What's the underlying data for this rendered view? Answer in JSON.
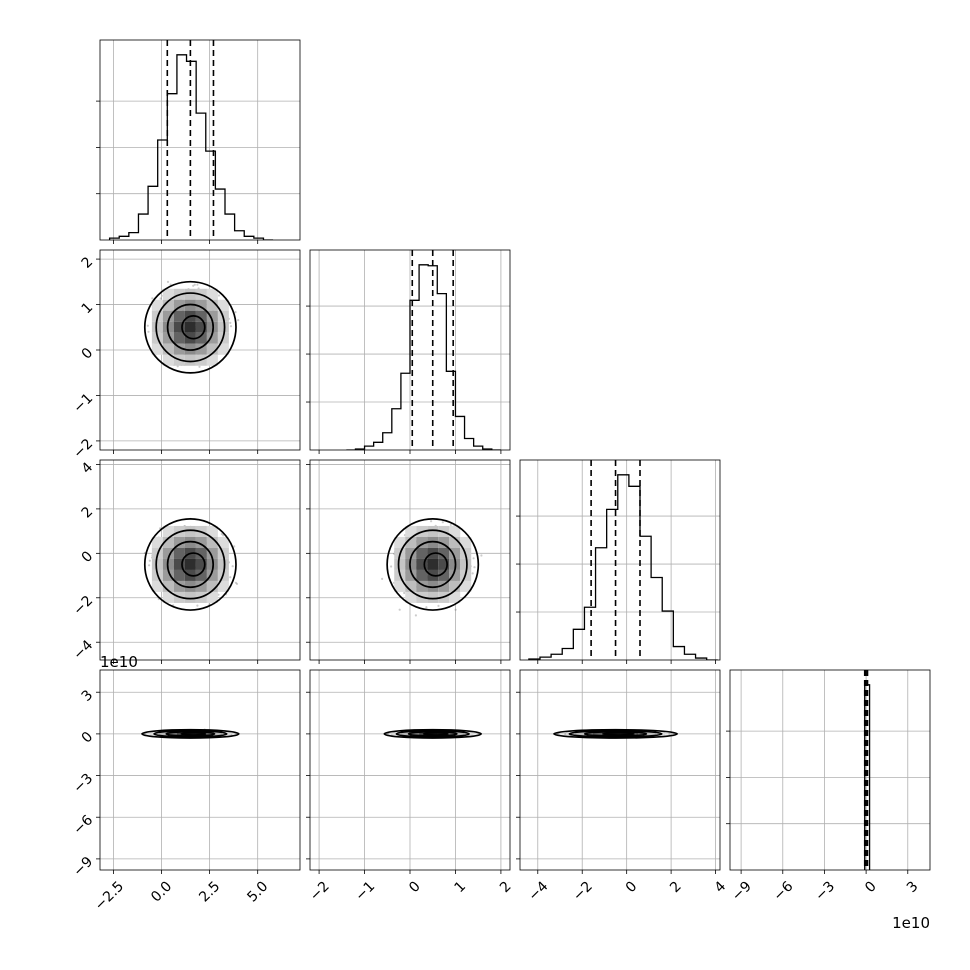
{
  "chart_data": {
    "type": "corner",
    "parameters": 4,
    "ranges": [
      [
        -3.2,
        7.2
      ],
      [
        -2.2,
        2.2
      ],
      [
        -4.8,
        4.2
      ],
      [
        -9.8,
        4.6
      ]
    ],
    "ticks": [
      [
        -2.5,
        0.0,
        2.5,
        5.0
      ],
      [
        -2,
        -1,
        0,
        1,
        2
      ],
      [
        -4,
        -2,
        0,
        2,
        4
      ],
      [
        -9,
        -6,
        -3,
        0,
        3
      ]
    ],
    "tick_labels": [
      [
        "−2.5",
        "0.0",
        "2.5",
        "5.0"
      ],
      [
        "−2",
        "−1",
        "0",
        "1",
        "2"
      ],
      [
        "−4",
        "−2",
        "0",
        "2",
        "4"
      ],
      [
        "−9",
        "−6",
        "−3",
        "0",
        "3"
      ]
    ],
    "offset_labels": {
      "row_axis": "1e10",
      "col_axis": "1e10"
    },
    "grid": true,
    "quantiles": [
      [
        0.3,
        1.5,
        2.7
      ],
      [
        0.05,
        0.5,
        0.95
      ],
      [
        -1.6,
        -0.5,
        0.6
      ],
      [
        -0.1,
        0.0,
        0.1
      ]
    ],
    "histograms": [
      {
        "bin_edges": [
          -2.7,
          -2.2,
          -1.7,
          -1.2,
          -0.7,
          -0.2,
          0.3,
          0.8,
          1.3,
          1.8,
          2.3,
          2.8,
          3.3,
          3.8,
          4.3,
          4.8,
          5.3,
          5.8
        ],
        "counts": [
          2,
          4,
          8,
          28,
          58,
          108,
          158,
          200,
          193,
          137,
          96,
          55,
          28,
          10,
          4,
          2,
          0
        ]
      },
      {
        "bin_edges": [
          -1.4,
          -1.2,
          -1.0,
          -0.8,
          -0.6,
          -0.4,
          -0.2,
          0.0,
          0.2,
          0.4,
          0.6,
          0.8,
          1.0,
          1.2,
          1.4,
          1.6,
          1.8,
          2.0
        ],
        "counts": [
          0,
          1,
          4,
          8,
          18,
          43,
          80,
          156,
          193,
          192,
          163,
          82,
          35,
          12,
          4,
          1,
          0
        ]
      },
      {
        "bin_edges": [
          -4.4,
          -3.9,
          -3.4,
          -2.9,
          -2.4,
          -1.9,
          -1.4,
          -0.9,
          -0.4,
          0.1,
          0.6,
          1.1,
          1.6,
          2.1,
          2.6,
          3.1,
          3.6,
          4.1
        ],
        "counts": [
          1,
          3,
          6,
          12,
          32,
          55,
          117,
          157,
          193,
          181,
          129,
          86,
          51,
          14,
          6,
          2,
          0
        ]
      },
      {
        "bin_edges": [
          -0.1,
          0.25
        ],
        "counts": [
          200
        ]
      }
    ],
    "pairs": [
      {
        "row": 1,
        "col": 0,
        "center": [
          1.5,
          0.5
        ]
      },
      {
        "row": 2,
        "col": 0,
        "center": [
          1.5,
          -0.5
        ]
      },
      {
        "row": 2,
        "col": 1,
        "center": [
          0.5,
          -0.5
        ]
      },
      {
        "row": 3,
        "col": 0,
        "center": [
          1.5,
          0.0
        ]
      },
      {
        "row": 3,
        "col": 1,
        "center": [
          0.5,
          0.0
        ]
      },
      {
        "row": 3,
        "col": 2,
        "center": [
          -0.5,
          0.0
        ]
      }
    ]
  }
}
